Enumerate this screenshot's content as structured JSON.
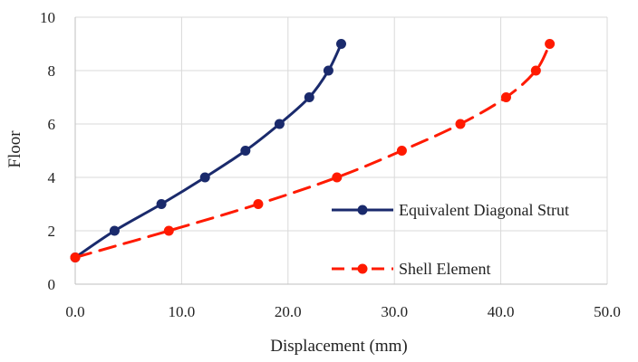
{
  "chart_data": {
    "type": "line",
    "xlabel": "Displacement (mm)",
    "ylabel": "Floor",
    "xlim": [
      0,
      50
    ],
    "ylim": [
      0,
      10
    ],
    "x_ticks": [
      "0.0",
      "10.0",
      "20.0",
      "30.0",
      "40.0",
      "50.0"
    ],
    "y_ticks": [
      "0",
      "2",
      "4",
      "6",
      "8",
      "10"
    ],
    "grid": true,
    "legend_position": "right",
    "series": [
      {
        "name": "Equivalent Diagonal Strut",
        "color": "#1a2a6c",
        "line_style": "solid",
        "points": [
          {
            "x": 0.0,
            "y": 1
          },
          {
            "x": 3.7,
            "y": 2
          },
          {
            "x": 8.1,
            "y": 3
          },
          {
            "x": 12.2,
            "y": 4
          },
          {
            "x": 16.0,
            "y": 5
          },
          {
            "x": 19.2,
            "y": 6
          },
          {
            "x": 22.0,
            "y": 7
          },
          {
            "x": 23.8,
            "y": 8
          },
          {
            "x": 25.0,
            "y": 9
          }
        ]
      },
      {
        "name": "Shell Element",
        "color": "#ff1a00",
        "line_style": "dashed",
        "points": [
          {
            "x": 0.0,
            "y": 1
          },
          {
            "x": 8.8,
            "y": 2
          },
          {
            "x": 17.2,
            "y": 3
          },
          {
            "x": 24.6,
            "y": 4
          },
          {
            "x": 30.7,
            "y": 5
          },
          {
            "x": 36.2,
            "y": 6
          },
          {
            "x": 40.5,
            "y": 7
          },
          {
            "x": 43.3,
            "y": 8
          },
          {
            "x": 44.6,
            "y": 9
          }
        ]
      }
    ]
  }
}
